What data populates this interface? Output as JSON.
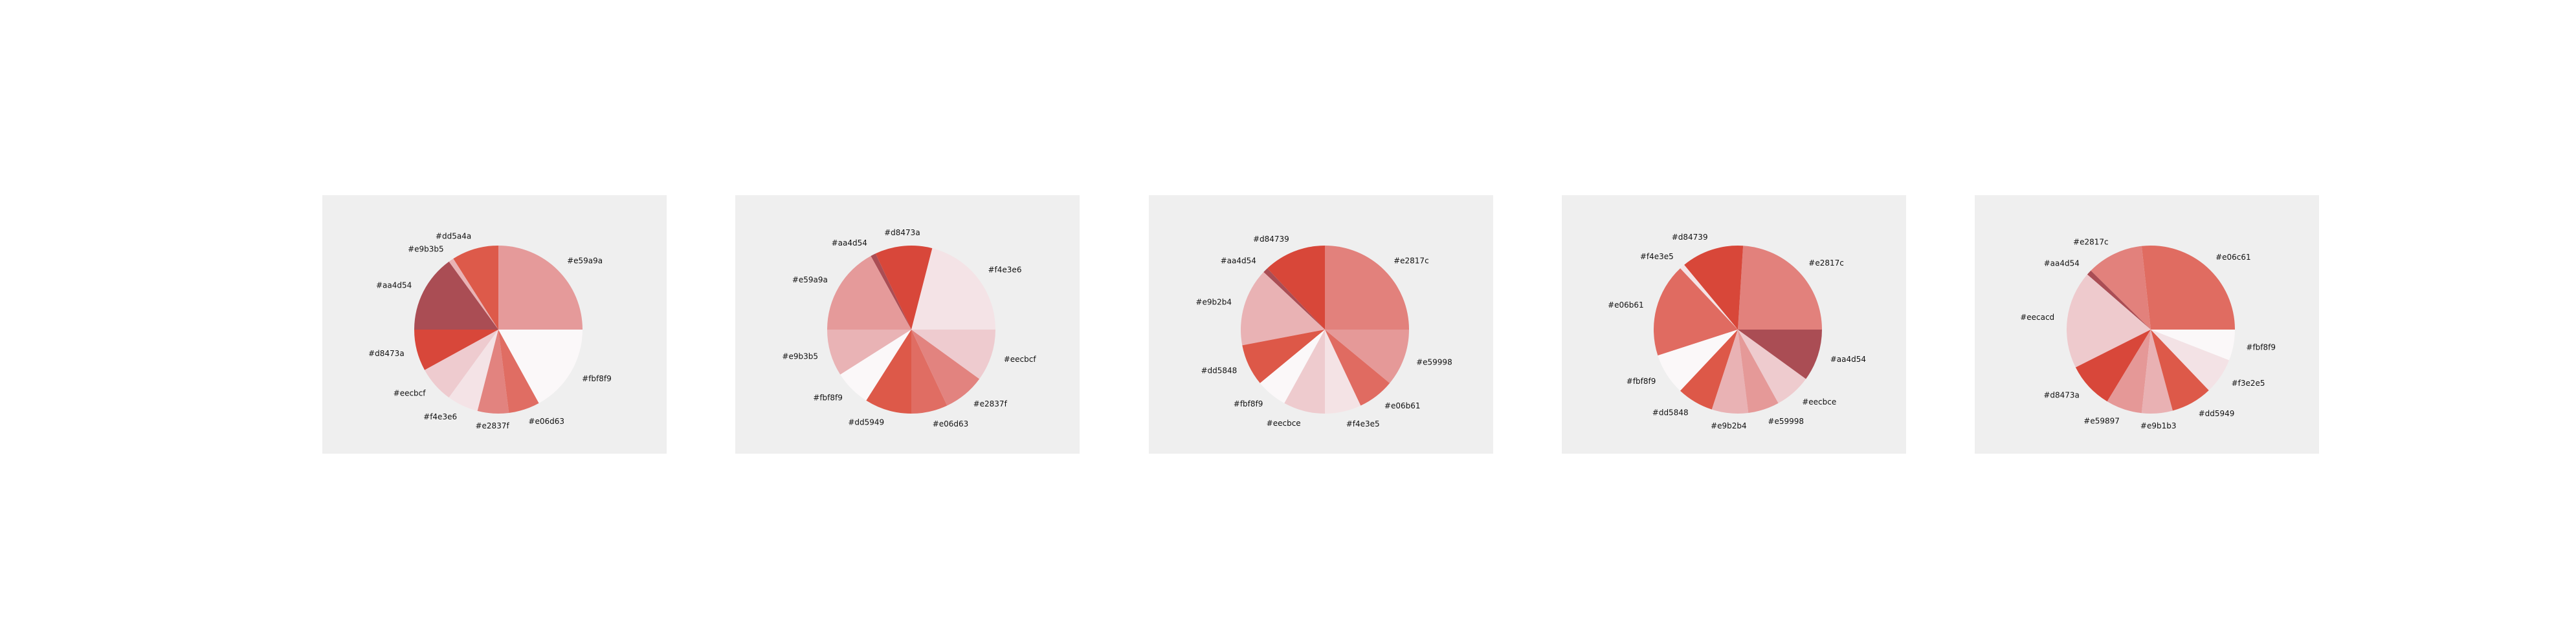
{
  "chart_data": [
    {
      "type": "pie",
      "labels": [
        "#e59a9a",
        "#dd5a4a",
        "#e9b3b5",
        "#aa4d54",
        "#d8473a",
        "#eecbcf",
        "#f4e3e6",
        "#e2837f",
        "#e06d63",
        "#fbf8f9"
      ],
      "values": [
        25,
        9,
        1,
        15,
        8,
        7,
        6,
        6,
        6,
        17
      ],
      "colors": [
        "#e59a9a",
        "#dd5a4a",
        "#e9b3b5",
        "#aa4d54",
        "#d8473a",
        "#eecbcf",
        "#f4e3e6",
        "#e2837f",
        "#e06d63",
        "#fbf8f9"
      ]
    },
    {
      "type": "pie",
      "labels": [
        "#f4e3e6",
        "#d8473a",
        "#aa4d54",
        "#e59a9a",
        "#e9b3b5",
        "#fbf8f9",
        "#dd5949",
        "#e06d63",
        "#e2837f",
        "#eecbcf"
      ],
      "values": [
        21,
        11,
        1,
        17,
        9,
        7,
        9,
        7,
        8,
        10
      ],
      "colors": [
        "#f4e3e6",
        "#d8473a",
        "#aa4d54",
        "#e59a9a",
        "#e9b3b5",
        "#fbf8f9",
        "#dd5949",
        "#e06d63",
        "#e2837f",
        "#eecbcf"
      ]
    },
    {
      "type": "pie",
      "labels": [
        "#e2817c",
        "#d84739",
        "#aa4d54",
        "#e9b2b4",
        "#dd5848",
        "#fbf8f9",
        "#eecbce",
        "#f4e3e5",
        "#e06b61",
        "#e59998"
      ],
      "values": [
        25,
        12,
        1,
        15,
        8,
        6,
        8,
        7,
        7,
        11
      ],
      "colors": [
        "#e2817c",
        "#d84739",
        "#aa4d54",
        "#e9b2b4",
        "#dd5848",
        "#fbf8f9",
        "#eecbce",
        "#f4e3e5",
        "#e06b61",
        "#e59998"
      ]
    },
    {
      "type": "pie",
      "labels": [
        "#e2817c",
        "#d84739",
        "#f4e3e5",
        "#e06b61",
        "#fbf8f9",
        "#dd5848",
        "#e9b2b4",
        "#e59998",
        "#eecbce",
        "#aa4d54"
      ],
      "values": [
        24,
        12,
        1,
        18,
        8,
        7,
        7,
        6,
        7,
        10
      ],
      "colors": [
        "#e2817c",
        "#d84739",
        "#f4e3e5",
        "#e06b61",
        "#fbf8f9",
        "#dd5848",
        "#e9b2b4",
        "#e59998",
        "#eecbce",
        "#aa4d54"
      ]
    },
    {
      "type": "pie",
      "labels": [
        "#e06c61",
        "#e2817c",
        "#aa4d54",
        "#eecacd",
        "#d8473a",
        "#e59897",
        "#e9b1b3",
        "#dd5949",
        "#f3e2e5",
        "#fbf8f9"
      ],
      "values": [
        27,
        11,
        1,
        19,
        9,
        7,
        6,
        8,
        7,
        6
      ],
      "colors": [
        "#e06c61",
        "#e2817c",
        "#aa4d54",
        "#eecacd",
        "#d8473a",
        "#e59897",
        "#e9b1b3",
        "#dd5949",
        "#f3e2e5",
        "#fbf8f9"
      ]
    }
  ]
}
